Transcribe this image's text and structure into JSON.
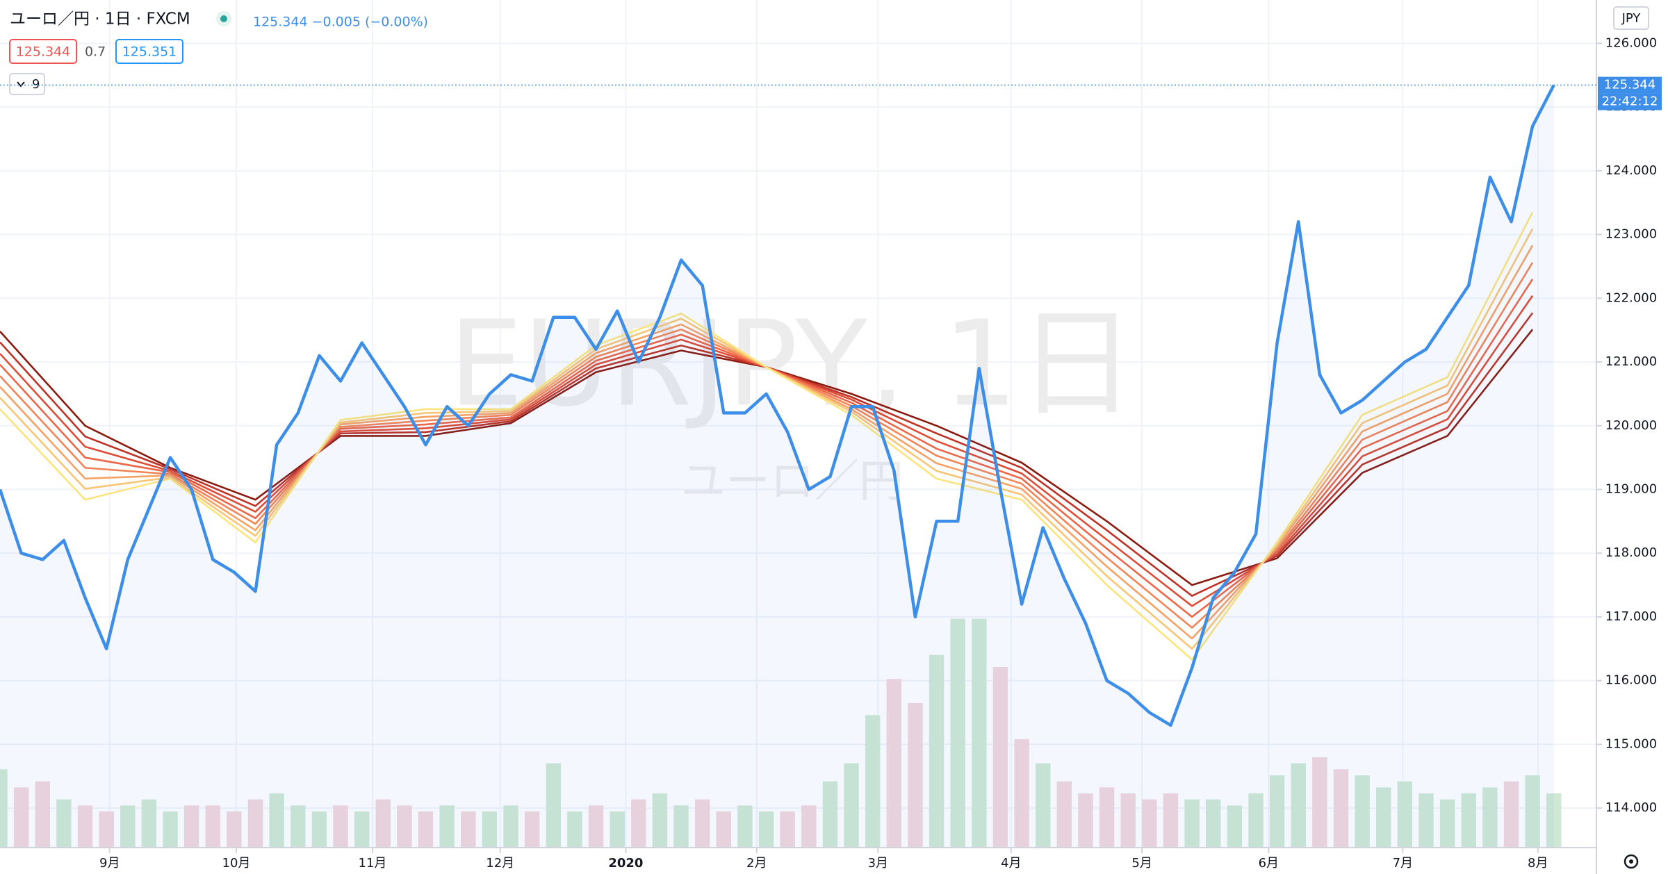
{
  "chart_data": {
    "type": "line",
    "title": "ユーロ／円 · 1日 · FXCM",
    "quote": "125.344 −0.005 (−0.00%)",
    "bid": 125.344,
    "spread": 0.7,
    "ask": 125.351,
    "indicator_count": 9,
    "watermark": "EURJPY, 1日",
    "watermark_sub": "ユーロ／円",
    "currency": "JPY",
    "last_price": 125.344,
    "countdown": "22:42:12",
    "xlim": [
      0,
      75
    ],
    "ylim": [
      113.38,
      126.68
    ],
    "xticks": [
      {
        "value": 5.15,
        "label": "9月"
      },
      {
        "value": 11.1,
        "label": "10月"
      },
      {
        "value": 17.5,
        "label": "11月"
      },
      {
        "value": 23.5,
        "label": "12月"
      },
      {
        "value": 29.4,
        "label": "2020"
      },
      {
        "value": 35.55,
        "label": "2月"
      },
      {
        "value": 41.25,
        "label": "3月"
      },
      {
        "value": 47.5,
        "label": "4月"
      },
      {
        "value": 53.65,
        "label": "5月"
      },
      {
        "value": 59.6,
        "label": "6月"
      },
      {
        "value": 65.9,
        "label": "7月"
      },
      {
        "value": 72.25,
        "label": "8月"
      }
    ],
    "yticks": [
      {
        "value": 114,
        "label": "114.000"
      },
      {
        "value": 115,
        "label": "115.000"
      },
      {
        "value": 116,
        "label": "116.000"
      },
      {
        "value": 117,
        "label": "117.000"
      },
      {
        "value": 118,
        "label": "118.000"
      },
      {
        "value": 119,
        "label": "119.000"
      },
      {
        "value": 120,
        "label": "120.000"
      },
      {
        "value": 121,
        "label": "121.000"
      },
      {
        "value": 122,
        "label": "122.000"
      },
      {
        "value": 123,
        "label": "123.000"
      },
      {
        "value": 124,
        "label": "124.000"
      },
      {
        "value": 125,
        "label": "125.000"
      },
      {
        "value": 126,
        "label": "126.000"
      }
    ],
    "grid": true,
    "x": [
      0,
      1,
      2,
      3,
      4,
      5,
      6,
      7,
      8,
      9,
      10,
      11,
      12,
      13,
      14,
      15,
      16,
      17,
      18,
      19,
      20,
      21,
      22,
      23,
      24,
      25,
      26,
      27,
      28,
      29,
      30,
      31,
      32,
      33,
      34,
      35,
      36,
      37,
      38,
      39,
      40,
      41,
      42,
      43,
      44,
      45,
      46,
      47,
      48,
      49,
      50,
      51,
      52,
      53,
      54,
      55,
      56,
      57,
      58,
      59,
      60,
      61,
      62,
      63,
      64,
      65,
      66,
      67,
      68,
      69,
      70,
      71,
      72,
      73
    ],
    "series": [
      {
        "color": "#3d8ee8",
        "values": [
          119.0,
          118.0,
          117.9,
          118.2,
          117.3,
          116.5,
          117.9,
          118.7,
          119.5,
          119.0,
          117.9,
          117.7,
          117.4,
          119.7,
          120.2,
          121.1,
          120.7,
          121.3,
          120.8,
          120.3,
          119.7,
          120.3,
          120.0,
          120.5,
          120.8,
          120.7,
          121.7,
          121.7,
          121.2,
          121.8,
          121.0,
          121.7,
          122.6,
          122.2,
          120.2,
          120.2,
          120.5,
          119.9,
          119.0,
          119.2,
          120.3,
          120.3,
          119.3,
          117.0,
          118.5,
          118.5,
          120.9,
          119.0,
          117.2,
          118.4,
          117.6,
          116.9,
          116.0,
          115.8,
          115.5,
          115.3,
          116.2,
          117.3,
          117.7,
          118.3,
          121.3,
          123.2,
          120.8,
          120.2,
          120.4,
          120.7,
          121.0,
          121.2,
          121.7,
          122.2,
          123.9,
          123.2,
          124.7,
          125.344
        ]
      }
    ],
    "volume": {
      "up_color": "#cfe8d4",
      "down_color": "#f1d6dc",
      "values": [
        65,
        50,
        55,
        40,
        35,
        30,
        35,
        40,
        30,
        35,
        35,
        30,
        40,
        45,
        35,
        30,
        35,
        30,
        40,
        35,
        30,
        35,
        30,
        30,
        35,
        30,
        70,
        30,
        35,
        30,
        40,
        45,
        35,
        40,
        30,
        35,
        30,
        30,
        35,
        55,
        70,
        110,
        140,
        120,
        160,
        190,
        190,
        150,
        90,
        70,
        55,
        45,
        50,
        45,
        40,
        45,
        40,
        40,
        35,
        45,
        60,
        70,
        75,
        65,
        60,
        50,
        55,
        45,
        40,
        45,
        50,
        55,
        60,
        45
      ]
    },
    "ribbon": {
      "x": [
        0,
        4,
        8,
        12,
        16,
        20,
        24,
        28,
        32,
        36,
        40,
        44,
        48,
        52,
        56,
        60,
        64,
        68,
        72
      ],
      "series": [
        {
          "color": "#8b1a0e",
          "values": [
            121.48,
            120.0,
            119.34,
            118.84,
            119.84,
            119.84,
            120.04,
            120.84,
            121.18,
            120.92,
            120.5,
            120.0,
            119.42,
            118.5,
            117.5,
            117.92,
            119.26,
            119.84,
            121.51
          ]
        },
        {
          "color": "#bf3326",
          "values": [
            121.31,
            119.83,
            119.32,
            118.74,
            119.88,
            119.9,
            120.07,
            120.9,
            121.26,
            120.92,
            120.45,
            119.88,
            119.34,
            118.36,
            117.33,
            117.96,
            119.39,
            119.97,
            121.77
          ]
        },
        {
          "color": "#de4c36",
          "values": [
            121.13,
            119.67,
            119.29,
            118.65,
            119.91,
            119.96,
            120.1,
            120.96,
            121.35,
            120.92,
            120.41,
            119.76,
            119.25,
            118.21,
            117.17,
            117.99,
            119.52,
            120.1,
            122.04
          ]
        },
        {
          "color": "#ec6647",
          "values": [
            120.96,
            119.5,
            119.27,
            118.55,
            119.95,
            120.02,
            120.13,
            121.02,
            121.43,
            120.92,
            120.36,
            119.64,
            119.17,
            118.07,
            117.0,
            118.03,
            119.65,
            120.23,
            122.3
          ]
        },
        {
          "color": "#f38456",
          "values": [
            120.78,
            119.34,
            119.24,
            118.46,
            119.98,
            120.08,
            120.17,
            121.08,
            121.51,
            120.92,
            120.31,
            119.53,
            119.09,
            117.93,
            116.83,
            118.06,
            119.78,
            120.37,
            122.56
          ]
        },
        {
          "color": "#f6a265",
          "values": [
            120.61,
            119.17,
            119.22,
            118.36,
            120.02,
            120.14,
            120.2,
            121.14,
            121.59,
            120.92,
            120.26,
            119.41,
            119.01,
            117.79,
            116.66,
            118.1,
            119.91,
            120.5,
            122.83
          ]
        },
        {
          "color": "#f8c574",
          "values": [
            120.44,
            119.01,
            119.19,
            118.27,
            120.05,
            120.2,
            120.23,
            121.2,
            121.68,
            120.92,
            120.22,
            119.29,
            118.92,
            117.64,
            116.5,
            118.13,
            120.04,
            120.63,
            123.09
          ]
        },
        {
          "color": "#fbe47e",
          "values": [
            120.26,
            118.84,
            119.17,
            118.17,
            120.09,
            120.26,
            120.26,
            121.26,
            121.76,
            120.92,
            120.17,
            119.17,
            118.84,
            117.5,
            116.33,
            118.17,
            120.17,
            120.76,
            123.35
          ]
        }
      ]
    }
  }
}
